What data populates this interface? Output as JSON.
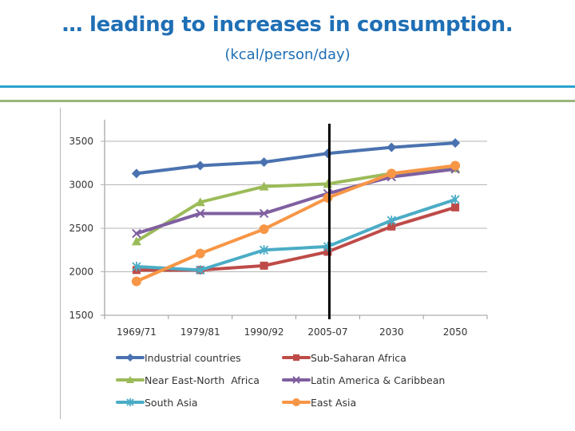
{
  "slide": {
    "title": "… leading to increases in consumption.",
    "subtitle": "(kcal/person/day)"
  },
  "chart_data": {
    "type": "line",
    "title": "",
    "xlabel": "",
    "ylabel": "kcal/person/day",
    "categories": [
      "1969/71",
      "1979/81",
      "1990/92",
      "2005-07",
      "2030",
      "2050"
    ],
    "ylim": [
      1500,
      3500
    ],
    "yticks": [
      1500,
      2000,
      2500,
      3000,
      3500
    ],
    "grid": true,
    "legend_position": "bottom",
    "annotations": [
      {
        "type": "vertical-line",
        "at_category": "2005-07",
        "color": "#000000"
      }
    ],
    "series": [
      {
        "name": "Industrial countries",
        "color": "#4a72b0",
        "marker": "diamond",
        "values": [
          3130,
          3220,
          3260,
          3360,
          3430,
          3480
        ]
      },
      {
        "name": "Sub-Saharan Africa",
        "color": "#be4b48",
        "marker": "square",
        "values": [
          2020,
          2020,
          2070,
          2230,
          2520,
          2740
        ]
      },
      {
        "name": "Near East-North  Africa",
        "color": "#9bbb59",
        "marker": "triangle",
        "values": [
          2350,
          2800,
          2980,
          3010,
          3130,
          3190
        ]
      },
      {
        "name": "Latin America & Caribbean",
        "color": "#7f5fa0",
        "marker": "x",
        "values": [
          2440,
          2670,
          2670,
          2900,
          3090,
          3180
        ]
      },
      {
        "name": "South Asia",
        "color": "#4bacc6",
        "marker": "star",
        "values": [
          2060,
          2020,
          2250,
          2290,
          2590,
          2830
        ]
      },
      {
        "name": "East Asia",
        "color": "#f79646",
        "marker": "circle",
        "values": [
          1890,
          2210,
          2490,
          2850,
          3130,
          3220
        ]
      }
    ]
  }
}
